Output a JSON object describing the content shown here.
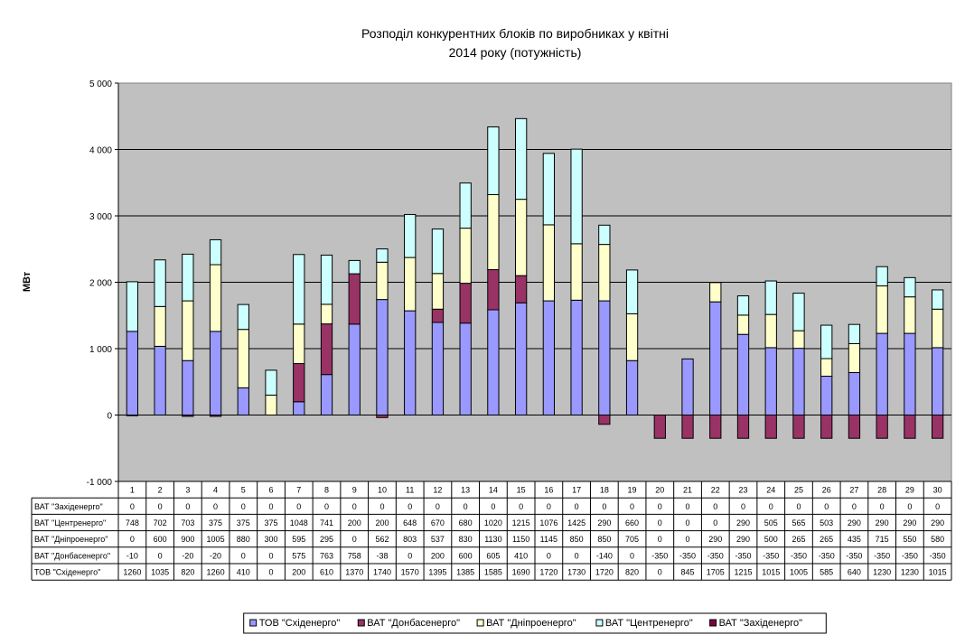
{
  "chart_data": {
    "type": "bar",
    "stacked": true,
    "title_lines": [
      "Розподіл конкурентних блоків по виробниках у квітні",
      "2014 року (потужність)"
    ],
    "xlabel": "",
    "ylabel": "МВт",
    "ylim": [
      -1000,
      5000
    ],
    "yticks": [
      -1000,
      0,
      1000,
      2000,
      3000,
      4000,
      5000
    ],
    "ytick_labels": [
      "-1 000",
      "0",
      "1 000",
      "2 000",
      "3 000",
      "4 000",
      "5 000"
    ],
    "grid": true,
    "legend_position": "bottom",
    "categories": [
      "1",
      "2",
      "3",
      "4",
      "5",
      "6",
      "7",
      "8",
      "9",
      "10",
      "11",
      "12",
      "13",
      "14",
      "15",
      "16",
      "17",
      "18",
      "19",
      "20",
      "21",
      "22",
      "23",
      "24",
      "25",
      "26",
      "27",
      "28",
      "29",
      "30"
    ],
    "series": [
      {
        "name": "ТОВ \"Східенерго\"",
        "color": "#9999ff",
        "values": [
          1260,
          1035,
          820,
          1260,
          410,
          0,
          200,
          610,
          1370,
          1740,
          1570,
          1395,
          1385,
          1585,
          1690,
          1720,
          1730,
          1720,
          820,
          0,
          845,
          1705,
          1215,
          1015,
          1005,
          585,
          640,
          1230,
          1230,
          1015
        ]
      },
      {
        "name": "ВАТ \"Донбасенерго\"",
        "color": "#993366",
        "values": [
          -10,
          0,
          -20,
          -20,
          0,
          0,
          575,
          763,
          758,
          -38,
          0,
          200,
          600,
          605,
          410,
          0,
          0,
          -140,
          0,
          -350,
          -350,
          -350,
          -350,
          -350,
          -350,
          -350,
          -350,
          -350,
          -350,
          -350
        ]
      },
      {
        "name": "ВАТ \"Дніпроенерго\"",
        "color": "#ffffcc",
        "values": [
          0,
          600,
          900,
          1005,
          880,
          300,
          595,
          295,
          0,
          562,
          803,
          537,
          830,
          1130,
          1150,
          1145,
          850,
          850,
          705,
          0,
          0,
          290,
          290,
          500,
          265,
          265,
          435,
          715,
          550,
          580
        ]
      },
      {
        "name": "ВАТ \"Центренерго\"",
        "color": "#ccffff",
        "values": [
          748,
          702,
          703,
          375,
          375,
          375,
          1048,
          741,
          200,
          200,
          648,
          670,
          680,
          1020,
          1215,
          1076,
          1425,
          290,
          660,
          0,
          0,
          0,
          290,
          505,
          565,
          503,
          290,
          290,
          290,
          290
        ]
      },
      {
        "name": "ВАТ \"Західенерго\"",
        "color": "#800040",
        "values": [
          0,
          0,
          0,
          0,
          0,
          0,
          0,
          0,
          0,
          0,
          0,
          0,
          0,
          0,
          0,
          0,
          0,
          0,
          0,
          0,
          0,
          0,
          0,
          0,
          0,
          0,
          0,
          0,
          0,
          0
        ]
      }
    ],
    "table_row_order": [
      "ВАТ \"Західенерго\"",
      "ВАТ \"Центренерго\"",
      "ВАТ \"Дніпроенерго\"",
      "ВАТ \"Донбасенерго\"",
      "ТОВ \"Східенерго\""
    ],
    "legend_order": [
      "ТОВ \"Східенерго\"",
      "ВАТ \"Донбасенерго\"",
      "ВАТ \"Дніпроенерго\"",
      "ВАТ \"Центренерго\"",
      "ВАТ \"Західенерго\""
    ],
    "plot_background": "#c0c0c0"
  }
}
